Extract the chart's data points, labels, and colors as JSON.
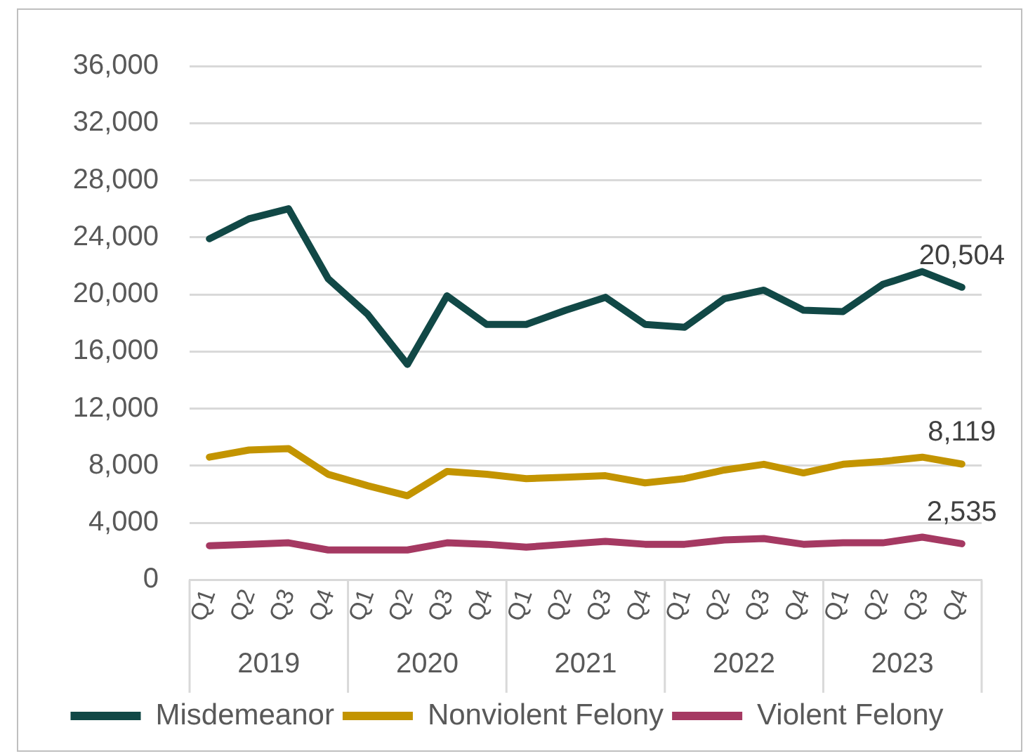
{
  "chart_data": {
    "type": "line",
    "categories": [
      "Q1",
      "Q2",
      "Q3",
      "Q4",
      "Q1",
      "Q2",
      "Q3",
      "Q4",
      "Q1",
      "Q2",
      "Q3",
      "Q4",
      "Q1",
      "Q2",
      "Q3",
      "Q4",
      "Q1",
      "Q2",
      "Q3",
      "Q4"
    ],
    "series": [
      {
        "name": "Misdemeanor",
        "color": "#114846",
        "values": [
          23900,
          25300,
          26000,
          21100,
          18600,
          15100,
          19900,
          17900,
          17900,
          18900,
          19800,
          17900,
          17700,
          19700,
          20300,
          18900,
          18800,
          20700,
          21600,
          20504
        ],
        "value_labels": [
          null,
          null,
          null,
          null,
          null,
          null,
          null,
          null,
          null,
          null,
          null,
          null,
          null,
          null,
          null,
          null,
          null,
          null,
          null,
          "20,504"
        ]
      },
      {
        "name": "Nonviolent Felony",
        "color": "#c39400",
        "values": [
          8600,
          9100,
          9200,
          7400,
          6600,
          5900,
          7600,
          7400,
          7100,
          7200,
          7300,
          6800,
          7100,
          7700,
          8100,
          7500,
          8100,
          8300,
          8600,
          8119
        ],
        "value_labels": [
          null,
          null,
          null,
          null,
          null,
          null,
          null,
          null,
          null,
          null,
          null,
          null,
          null,
          null,
          null,
          null,
          null,
          null,
          null,
          "8,119"
        ]
      },
      {
        "name": "Violent Felony",
        "color": "#a53962",
        "values": [
          2400,
          2500,
          2600,
          2100,
          2100,
          2100,
          2600,
          2500,
          2300,
          2500,
          2700,
          2500,
          2500,
          2800,
          2900,
          2500,
          2600,
          2600,
          3000,
          2535
        ],
        "value_labels": [
          null,
          null,
          null,
          null,
          null,
          null,
          null,
          null,
          null,
          null,
          null,
          null,
          null,
          null,
          null,
          null,
          null,
          null,
          null,
          "2,535"
        ]
      }
    ],
    "annotations": [
      "2019",
      "2020",
      "2021",
      "2022",
      "2023"
    ],
    "ylim": [
      0,
      36000
    ],
    "yticks": [
      0,
      {
        "value": 4000,
        "label": "4,000"
      },
      {
        "value": 8000,
        "label": "8,000"
      },
      {
        "value": 12000,
        "label": "12,000"
      },
      {
        "value": 16000,
        "label": "16,000"
      },
      {
        "value": 20000,
        "label": "20,000"
      },
      {
        "value": 24000,
        "label": "24,000"
      },
      {
        "value": 28000,
        "label": "28,000"
      },
      {
        "value": 32000,
        "label": "32,000"
      },
      {
        "value": 36000,
        "label": "36,000"
      }
    ],
    "grid": "y",
    "legend": "bottom",
    "marker": "none",
    "line_style": "solid"
  }
}
